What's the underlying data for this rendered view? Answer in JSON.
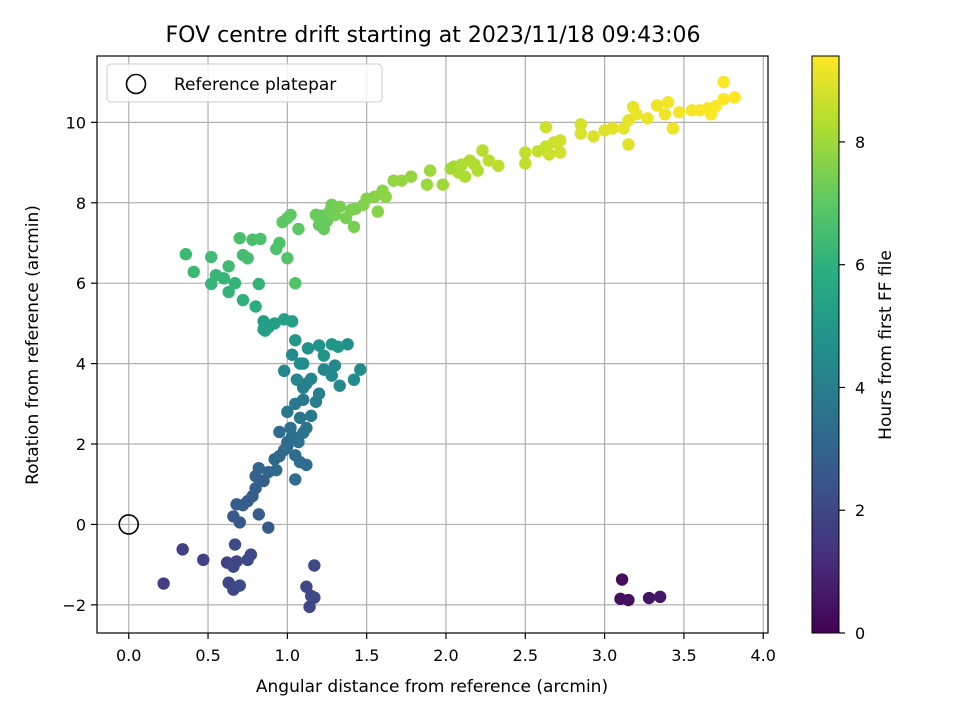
{
  "chart_data": {
    "type": "scatter",
    "title": "FOV centre drift starting at 2023/11/18 09:43:06",
    "xlabel": "Angular distance from reference (arcmin)",
    "ylabel": "Rotation from reference (arcmin)",
    "xlim": [
      -0.2,
      4.03
    ],
    "ylim": [
      -2.7,
      11.65
    ],
    "xticks": [
      "0.0",
      "0.5",
      "1.0",
      "1.5",
      "2.0",
      "2.5",
      "3.0",
      "3.5",
      "4.0"
    ],
    "yticks": [
      "-2",
      "0",
      "2",
      "4",
      "6",
      "8",
      "10"
    ],
    "grid": true,
    "legend": {
      "position": "top-left",
      "entries": [
        "Reference platepar"
      ]
    },
    "reference_point": {
      "x": 0.0,
      "y": 0.0,
      "label": "Reference platepar",
      "marker": "hollow-circle"
    },
    "colorbar": {
      "label": "Hours from first FF file",
      "range": [
        0,
        9.4
      ],
      "ticks": [
        "0",
        "2",
        "4",
        "6",
        "8"
      ],
      "colormap": "viridis"
    },
    "points": [
      [
        3.11,
        -1.37,
        0.3
      ],
      [
        3.1,
        -1.85,
        0.35
      ],
      [
        3.15,
        -1.88,
        0.4
      ],
      [
        3.28,
        -1.83,
        0.5
      ],
      [
        3.35,
        -1.8,
        0.6
      ],
      [
        0.22,
        -1.47,
        1.7
      ],
      [
        0.34,
        -0.62,
        1.8
      ],
      [
        0.47,
        -0.88,
        1.85
      ],
      [
        0.62,
        -0.95,
        1.9
      ],
      [
        0.63,
        -1.45,
        1.95
      ],
      [
        0.66,
        -1.62,
        2.0
      ],
      [
        0.68,
        -0.92,
        2.0
      ],
      [
        0.7,
        -1.52,
        2.05
      ],
      [
        0.75,
        -0.88,
        2.1
      ],
      [
        0.77,
        -0.75,
        2.1
      ],
      [
        0.67,
        -0.5,
        2.15
      ],
      [
        0.66,
        -1.05,
        2.05
      ],
      [
        1.17,
        -1.02,
        2.1
      ],
      [
        1.12,
        -1.55,
        2.0
      ],
      [
        1.15,
        -1.78,
        2.05
      ],
      [
        1.17,
        -1.82,
        2.05
      ],
      [
        1.14,
        -2.05,
        2.0
      ],
      [
        0.7,
        0.05,
        2.6
      ],
      [
        0.66,
        0.2,
        2.6
      ],
      [
        0.68,
        0.5,
        2.7
      ],
      [
        0.75,
        0.58,
        2.7
      ],
      [
        0.78,
        0.7,
        2.8
      ],
      [
        0.8,
        0.9,
        2.8
      ],
      [
        0.82,
        0.25,
        2.7
      ],
      [
        0.88,
        -0.08,
        2.6
      ],
      [
        0.72,
        0.48,
        2.75
      ],
      [
        0.85,
        1.08,
        2.9
      ],
      [
        0.8,
        1.2,
        2.95
      ],
      [
        0.82,
        1.4,
        3.0
      ],
      [
        0.88,
        1.3,
        3.0
      ],
      [
        0.92,
        1.62,
        3.1
      ],
      [
        0.95,
        1.7,
        3.15
      ],
      [
        0.98,
        1.85,
        3.2
      ],
      [
        1.0,
        2.05,
        3.3
      ],
      [
        0.95,
        2.3,
        3.35
      ],
      [
        1.02,
        2.4,
        3.4
      ],
      [
        1.05,
        1.72,
        3.3
      ],
      [
        1.08,
        1.55,
        3.3
      ],
      [
        1.12,
        1.48,
        3.3
      ],
      [
        0.93,
        1.35,
        3.25
      ],
      [
        1.05,
        1.12,
        3.3
      ],
      [
        1.0,
        1.95,
        3.3
      ],
      [
        1.03,
        2.2,
        3.45
      ],
      [
        1.07,
        2.05,
        3.45
      ],
      [
        1.1,
        2.28,
        3.5
      ],
      [
        1.12,
        2.4,
        3.55
      ],
      [
        1.08,
        2.65,
        3.6
      ],
      [
        1.0,
        2.8,
        3.7
      ],
      [
        1.05,
        3.0,
        3.75
      ],
      [
        1.1,
        3.1,
        3.8
      ],
      [
        1.15,
        2.7,
        3.8
      ],
      [
        1.18,
        3.05,
        3.9
      ],
      [
        1.2,
        3.25,
        4.0
      ],
      [
        1.1,
        3.4,
        4.05
      ],
      [
        1.12,
        3.5,
        4.1
      ],
      [
        1.15,
        3.62,
        4.2
      ],
      [
        1.23,
        3.85,
        4.3
      ],
      [
        1.28,
        3.7,
        4.4
      ],
      [
        1.3,
        3.95,
        4.4
      ],
      [
        1.33,
        3.45,
        4.4
      ],
      [
        1.38,
        4.48,
        4.6
      ],
      [
        1.42,
        3.6,
        4.5
      ],
      [
        1.46,
        3.85,
        4.6
      ],
      [
        1.06,
        3.6,
        4.3
      ],
      [
        0.98,
        3.82,
        4.3
      ],
      [
        1.03,
        4.22,
        4.5
      ],
      [
        1.08,
        4.0,
        4.6
      ],
      [
        1.13,
        4.38,
        4.7
      ],
      [
        1.2,
        4.45,
        4.8
      ],
      [
        1.23,
        4.2,
        4.85
      ],
      [
        1.28,
        4.48,
        4.9
      ],
      [
        1.32,
        4.42,
        4.95
      ],
      [
        1.1,
        4.0,
        4.6
      ],
      [
        1.05,
        4.58,
        4.95
      ],
      [
        0.85,
        5.05,
        5.2
      ],
      [
        0.88,
        4.9,
        5.2
      ],
      [
        0.92,
        5.0,
        5.25
      ],
      [
        0.98,
        5.1,
        5.3
      ],
      [
        1.03,
        5.05,
        5.3
      ],
      [
        0.85,
        4.85,
        5.25
      ],
      [
        0.86,
        4.82,
        5.3
      ],
      [
        0.36,
        6.72,
        6.3
      ],
      [
        0.41,
        6.28,
        6.3
      ],
      [
        0.52,
        5.98,
        6.2
      ],
      [
        0.55,
        6.2,
        6.2
      ],
      [
        0.6,
        6.12,
        6.2
      ],
      [
        0.63,
        5.78,
        6.1
      ],
      [
        0.67,
        6.0,
        6.15
      ],
      [
        0.72,
        5.58,
        6.0
      ],
      [
        0.8,
        5.42,
        5.9
      ],
      [
        0.82,
        5.98,
        6.1
      ],
      [
        0.52,
        6.65,
        6.4
      ],
      [
        0.63,
        6.42,
        6.4
      ],
      [
        0.72,
        6.7,
        6.5
      ],
      [
        0.75,
        6.62,
        6.5
      ],
      [
        0.7,
        7.12,
        6.6
      ],
      [
        0.78,
        7.08,
        6.6
      ],
      [
        0.83,
        7.1,
        6.65
      ],
      [
        0.93,
        6.85,
        6.7
      ],
      [
        0.95,
        7.0,
        6.7
      ],
      [
        1.0,
        6.62,
        6.8
      ],
      [
        1.05,
        6.0,
        6.8
      ],
      [
        0.97,
        7.52,
        7.0
      ],
      [
        1.0,
        7.62,
        7.0
      ],
      [
        1.02,
        7.7,
        7.05
      ],
      [
        1.07,
        7.35,
        7.0
      ],
      [
        1.18,
        7.7,
        7.2
      ],
      [
        1.22,
        7.68,
        7.2
      ],
      [
        1.25,
        7.55,
        7.2
      ],
      [
        1.2,
        7.45,
        7.15
      ],
      [
        1.23,
        7.35,
        7.15
      ],
      [
        1.27,
        7.8,
        7.3
      ],
      [
        1.28,
        7.95,
        7.3
      ],
      [
        1.3,
        7.7,
        7.35
      ],
      [
        1.33,
        7.9,
        7.4
      ],
      [
        1.37,
        7.62,
        7.4
      ],
      [
        1.4,
        7.82,
        7.45
      ],
      [
        1.42,
        7.4,
        7.45
      ],
      [
        1.43,
        7.85,
        7.5
      ],
      [
        1.48,
        7.95,
        7.55
      ],
      [
        1.5,
        8.1,
        7.6
      ],
      [
        1.55,
        8.15,
        7.65
      ],
      [
        1.57,
        7.78,
        7.65
      ],
      [
        1.6,
        8.3,
        7.7
      ],
      [
        1.62,
        8.15,
        7.75
      ],
      [
        1.67,
        8.55,
        7.8
      ],
      [
        1.72,
        8.55,
        7.85
      ],
      [
        1.78,
        8.65,
        7.9
      ],
      [
        1.88,
        8.45,
        7.95
      ],
      [
        1.9,
        8.8,
        8.0
      ],
      [
        1.98,
        8.45,
        8.0
      ],
      [
        2.03,
        8.85,
        8.1
      ],
      [
        2.05,
        8.9,
        8.1
      ],
      [
        2.08,
        8.75,
        8.15
      ],
      [
        2.1,
        8.95,
        8.2
      ],
      [
        2.12,
        8.65,
        8.2
      ],
      [
        2.15,
        9.05,
        8.25
      ],
      [
        2.18,
        8.95,
        8.25
      ],
      [
        2.2,
        8.8,
        8.3
      ],
      [
        2.23,
        9.3,
        8.35
      ],
      [
        2.27,
        9.05,
        8.4
      ],
      [
        2.33,
        8.92,
        8.45
      ],
      [
        2.5,
        9.25,
        8.5
      ],
      [
        2.5,
        8.98,
        8.5
      ],
      [
        2.58,
        9.28,
        8.55
      ],
      [
        2.63,
        9.4,
        8.6
      ],
      [
        2.65,
        9.2,
        8.65
      ],
      [
        2.68,
        9.5,
        8.7
      ],
      [
        2.63,
        9.88,
        8.7
      ],
      [
        2.72,
        9.55,
        8.75
      ],
      [
        2.72,
        9.25,
        8.75
      ],
      [
        2.85,
        9.95,
        8.85
      ],
      [
        2.85,
        9.72,
        8.85
      ],
      [
        2.93,
        9.65,
        8.9
      ],
      [
        3.0,
        9.8,
        8.95
      ],
      [
        3.05,
        9.85,
        9.0
      ],
      [
        3.12,
        9.85,
        9.05
      ],
      [
        3.15,
        10.05,
        9.05
      ],
      [
        3.18,
        10.38,
        9.1
      ],
      [
        3.2,
        10.2,
        9.1
      ],
      [
        3.27,
        10.1,
        9.15
      ],
      [
        3.15,
        9.45,
        9.0
      ],
      [
        3.33,
        10.42,
        9.2
      ],
      [
        3.38,
        10.2,
        9.2
      ],
      [
        3.4,
        10.5,
        9.25
      ],
      [
        3.43,
        9.85,
        9.2
      ],
      [
        3.47,
        10.25,
        9.25
      ],
      [
        3.55,
        10.3,
        9.3
      ],
      [
        3.6,
        10.3,
        9.3
      ],
      [
        3.65,
        10.35,
        9.35
      ],
      [
        3.67,
        10.2,
        9.35
      ],
      [
        3.7,
        10.4,
        9.35
      ],
      [
        3.75,
        11.0,
        9.4
      ],
      [
        3.75,
        10.58,
        9.4
      ],
      [
        3.82,
        10.62,
        9.4
      ]
    ]
  }
}
